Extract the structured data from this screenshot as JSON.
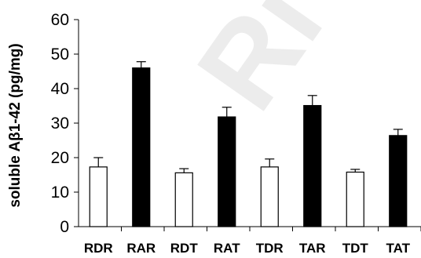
{
  "chart_data": {
    "type": "bar",
    "ylabel": "soluble Aβ1-42 (pg/mg)",
    "xlabel": "",
    "ylim": [
      0,
      60
    ],
    "yticks": [
      "0",
      "10",
      "20",
      "30",
      "40",
      "50",
      "60"
    ],
    "categories": [
      "RDR",
      "RAR",
      "RDT",
      "RAT",
      "TDR",
      "TAR",
      "TDT",
      "TAT"
    ],
    "values": [
      17.3,
      46.0,
      15.6,
      31.8,
      17.3,
      35.1,
      15.8,
      26.4
    ],
    "error": [
      2.7,
      1.8,
      1.2,
      2.8,
      2.3,
      2.9,
      0.8,
      1.8
    ],
    "fills": [
      "white",
      "black",
      "white",
      "black",
      "white",
      "black",
      "white",
      "black"
    ],
    "grid": false,
    "legend": "none"
  },
  "colors": {
    "filled_bar": "#000000",
    "open_bar": "#ffffff",
    "axis": "#000000",
    "watermark": "#9a9a9a"
  }
}
